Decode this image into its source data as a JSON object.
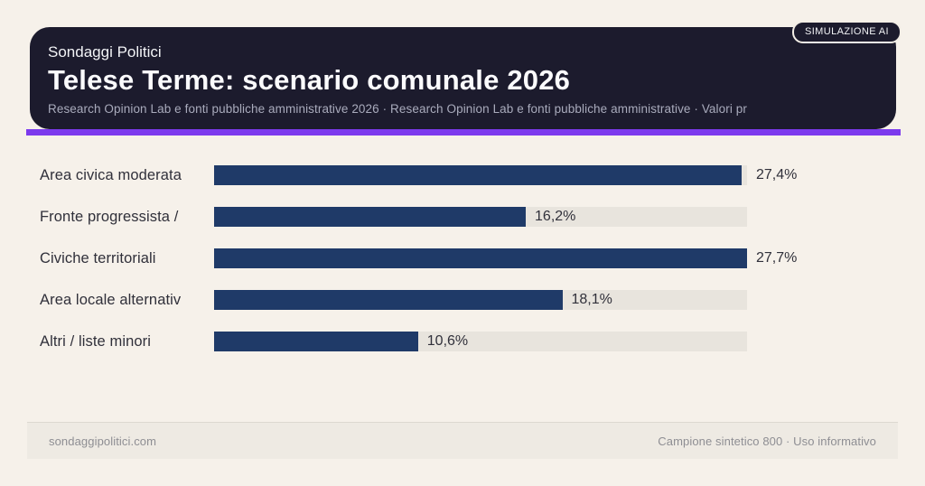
{
  "badge": {
    "label": "SIMULAZIONE AI"
  },
  "header": {
    "kicker": "Sondaggi Politici",
    "title": "Telese Terme: scenario comunale 2026",
    "subtitle": "Research Opinion Lab e fonti pubbliche amministrative 2026 · Research Opinion Lab e fonti pubbliche amministrative · Valori pr"
  },
  "chart_data": {
    "type": "bar",
    "orientation": "horizontal",
    "title": "Telese Terme: scenario comunale 2026",
    "categories": [
      "Area civica moderata",
      "Fronte progressista /",
      "Civiche territoriali",
      "Area locale alternativ",
      "Altri / liste minori"
    ],
    "values": [
      27.4,
      16.2,
      27.7,
      18.1,
      10.6
    ],
    "value_labels": [
      "27,4%",
      "16,2%",
      "27,7%",
      "18,1%",
      "10,6%"
    ],
    "value_suffix": "%",
    "xlim": [
      0,
      27.7
    ],
    "grid": false,
    "legend": "none",
    "bar_color": "#1f3a68",
    "track_color": "#e8e4dd"
  },
  "footer": {
    "left": "sondaggipolitici.com",
    "right": "Campione sintetico 800 · Uso informativo"
  },
  "colors": {
    "background": "#f6f1ea",
    "card": "#1c1b2d",
    "accent": "#7c3aed",
    "bar": "#1f3a68",
    "track": "#e8e4dd"
  }
}
